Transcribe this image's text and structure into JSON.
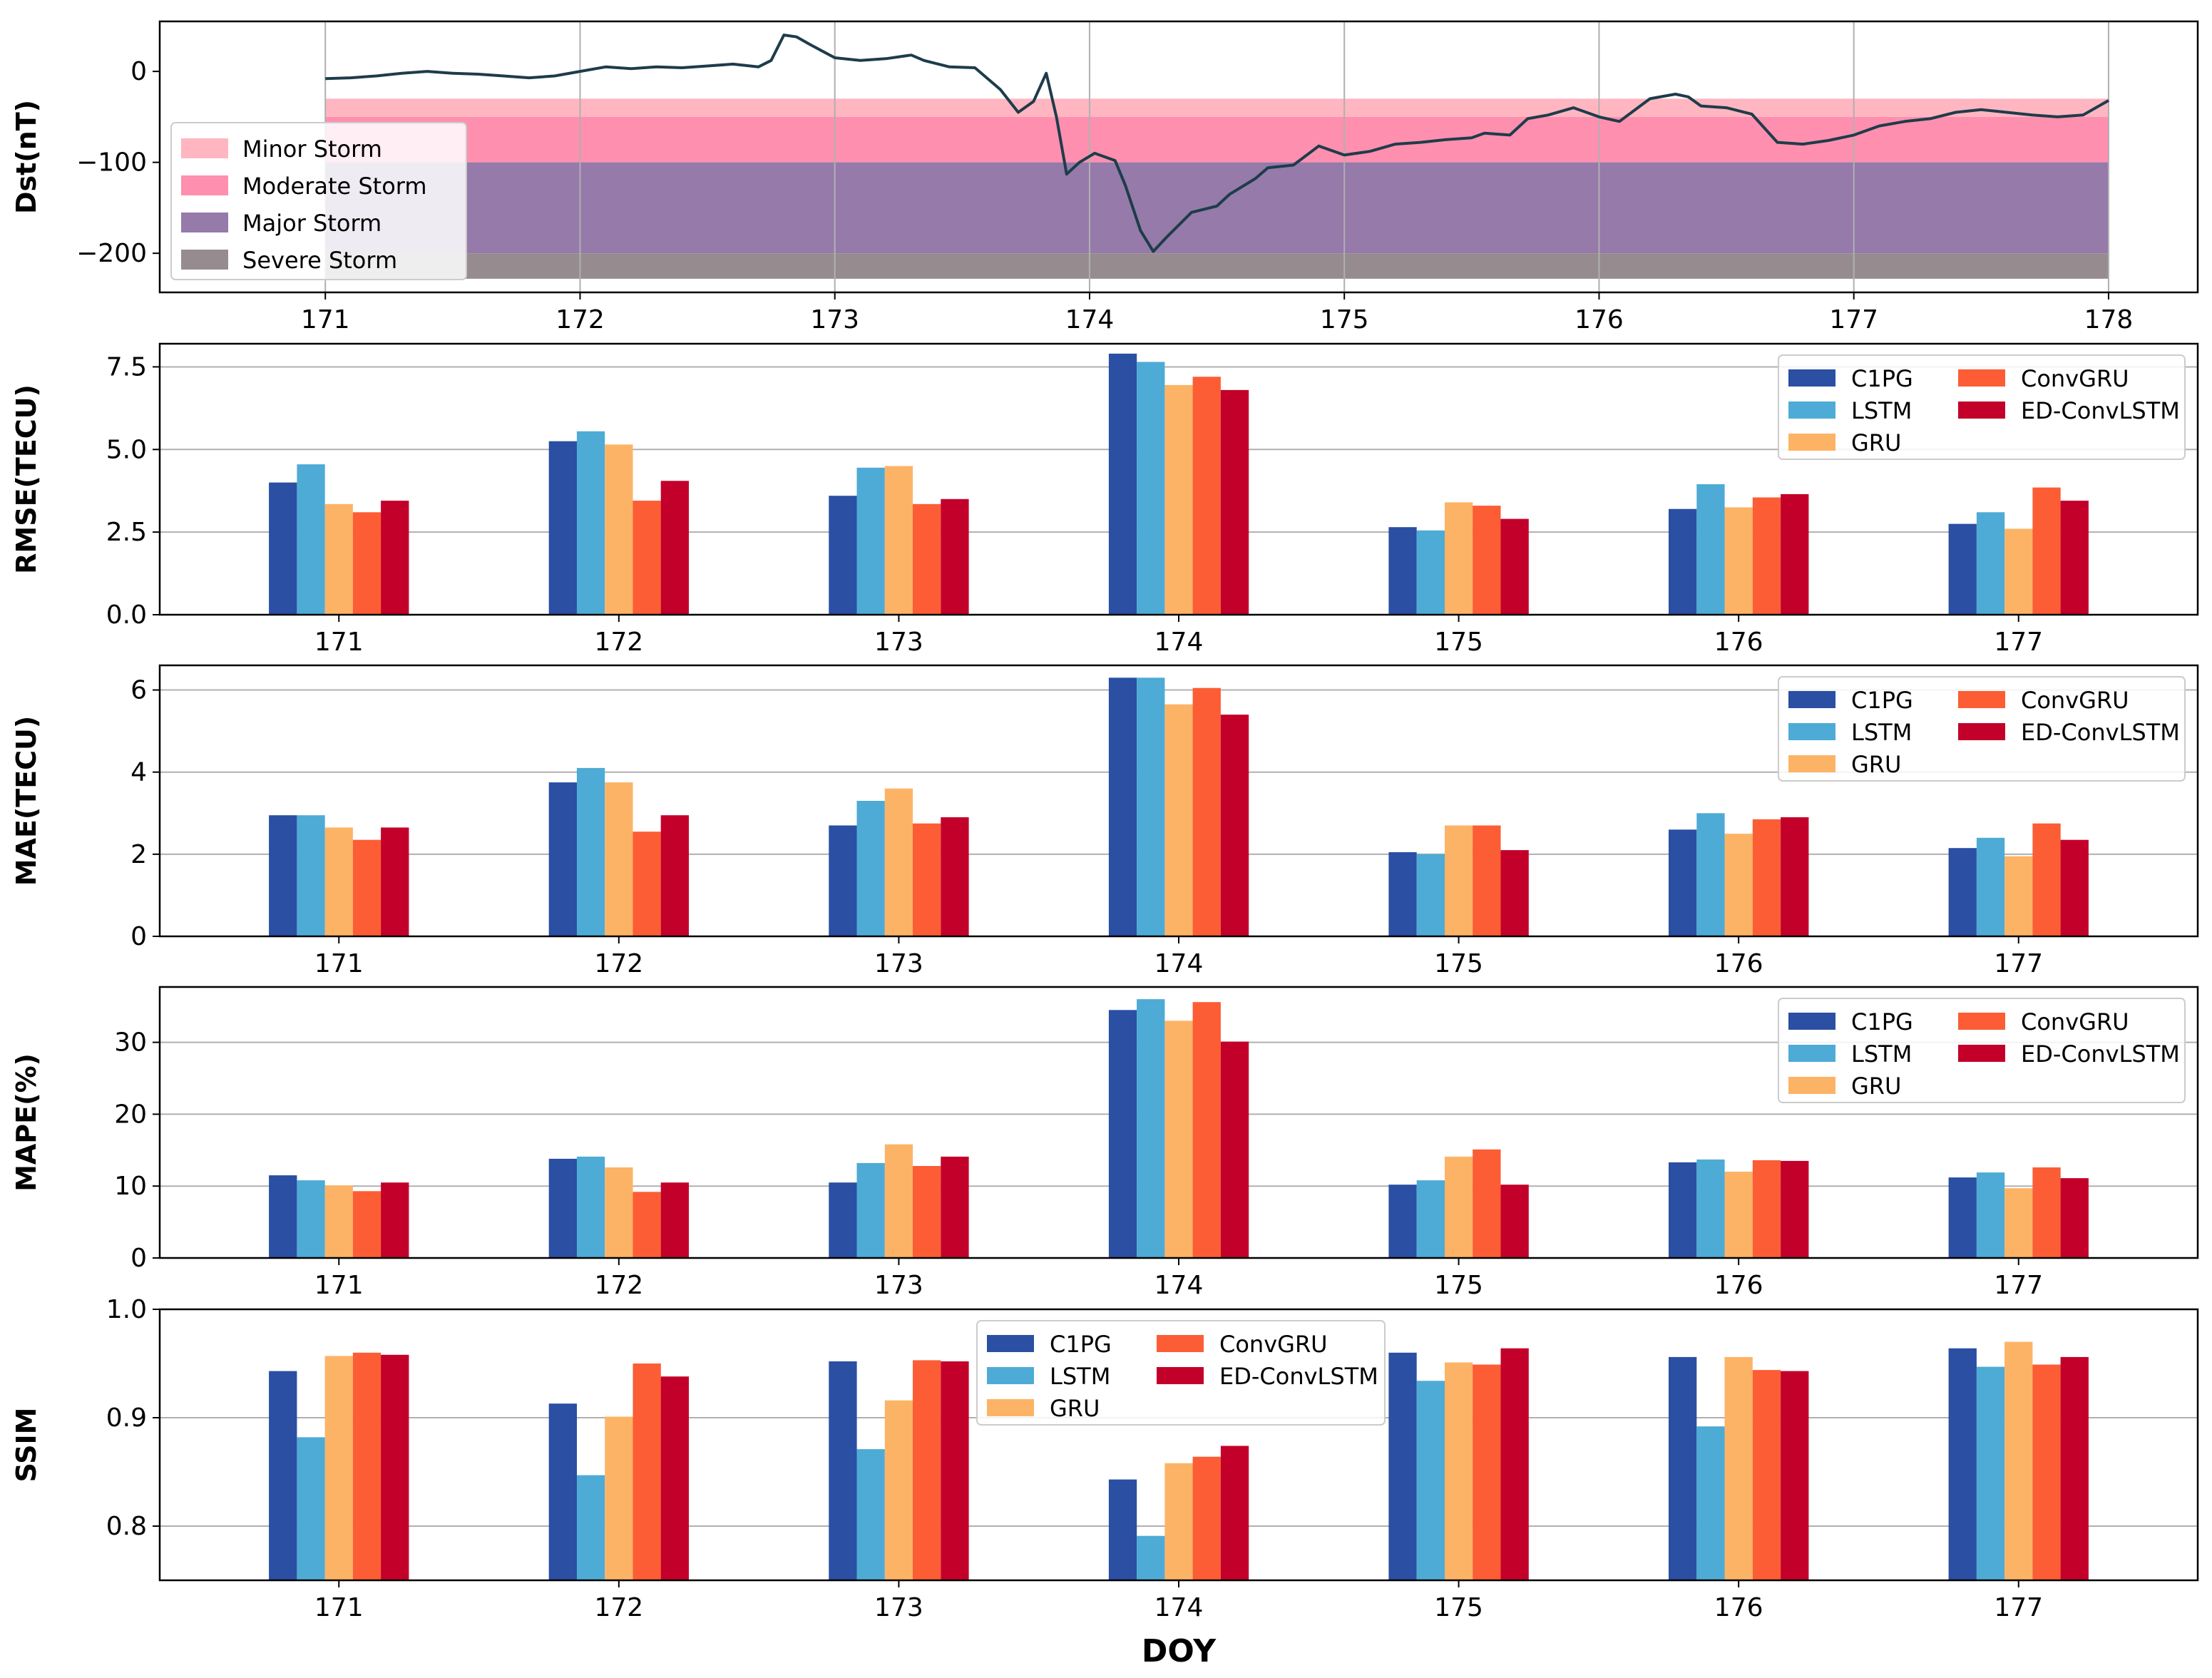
{
  "chart_data": [
    {
      "type": "line",
      "ylabel": "Dst(nT)",
      "xlim": [
        170.35,
        178.35
      ],
      "ylim": [
        -243,
        55
      ],
      "xticks": [
        171,
        172,
        173,
        174,
        175,
        176,
        177,
        178
      ],
      "yticks": [
        0,
        -100,
        -200
      ],
      "ytick_labels": [
        "0",
        "−100",
        "−200"
      ],
      "grid": "vertical",
      "bands": [
        {
          "name": "Minor Storm",
          "from": -30,
          "to": -50,
          "color": "#ffb6c1"
        },
        {
          "name": "Moderate Storm",
          "from": -50,
          "to": -100,
          "color": "#ff8faf"
        },
        {
          "name": "Major Storm",
          "from": -100,
          "to": -200,
          "color": "#957aaa"
        },
        {
          "name": "Severe Storm",
          "from": -200,
          "to": -228,
          "color": "#968c90"
        }
      ],
      "band_x_range": [
        171,
        178
      ],
      "line_color": "#1e3c4a",
      "legend_position": "lower-left",
      "series": [
        {
          "name": "Dst",
          "points": [
            [
              171.0,
              -8
            ],
            [
              171.1,
              -7
            ],
            [
              171.2,
              -5
            ],
            [
              171.3,
              -2
            ],
            [
              171.4,
              0
            ],
            [
              171.5,
              -2
            ],
            [
              171.6,
              -3
            ],
            [
              171.7,
              -5
            ],
            [
              171.8,
              -7
            ],
            [
              171.9,
              -5
            ],
            [
              172.0,
              0
            ],
            [
              172.1,
              5
            ],
            [
              172.2,
              3
            ],
            [
              172.3,
              5
            ],
            [
              172.4,
              4
            ],
            [
              172.5,
              6
            ],
            [
              172.6,
              8
            ],
            [
              172.7,
              5
            ],
            [
              172.75,
              12
            ],
            [
              172.8,
              40
            ],
            [
              172.85,
              38
            ],
            [
              172.9,
              30
            ],
            [
              173.0,
              15
            ],
            [
              173.1,
              12
            ],
            [
              173.2,
              14
            ],
            [
              173.3,
              18
            ],
            [
              173.35,
              12
            ],
            [
              173.45,
              5
            ],
            [
              173.55,
              4
            ],
            [
              173.65,
              -20
            ],
            [
              173.72,
              -45
            ],
            [
              173.78,
              -33
            ],
            [
              173.83,
              -2
            ],
            [
              173.87,
              -50
            ],
            [
              173.91,
              -113
            ],
            [
              173.96,
              -100
            ],
            [
              174.02,
              -90
            ],
            [
              174.1,
              -98
            ],
            [
              174.14,
              -125
            ],
            [
              174.2,
              -175
            ],
            [
              174.25,
              -198
            ],
            [
              174.3,
              -183
            ],
            [
              174.4,
              -155
            ],
            [
              174.5,
              -148
            ],
            [
              174.55,
              -135
            ],
            [
              174.65,
              -118
            ],
            [
              174.7,
              -106
            ],
            [
              174.8,
              -103
            ],
            [
              174.9,
              -82
            ],
            [
              175.0,
              -92
            ],
            [
              175.1,
              -88
            ],
            [
              175.2,
              -80
            ],
            [
              175.3,
              -78
            ],
            [
              175.4,
              -75
            ],
            [
              175.5,
              -73
            ],
            [
              175.55,
              -68
            ],
            [
              175.65,
              -70
            ],
            [
              175.72,
              -52
            ],
            [
              175.8,
              -48
            ],
            [
              175.9,
              -40
            ],
            [
              176.0,
              -50
            ],
            [
              176.08,
              -55
            ],
            [
              176.2,
              -30
            ],
            [
              176.3,
              -25
            ],
            [
              176.35,
              -28
            ],
            [
              176.4,
              -38
            ],
            [
              176.5,
              -40
            ],
            [
              176.6,
              -47
            ],
            [
              176.7,
              -78
            ],
            [
              176.8,
              -80
            ],
            [
              176.9,
              -76
            ],
            [
              177.0,
              -70
            ],
            [
              177.1,
              -60
            ],
            [
              177.2,
              -55
            ],
            [
              177.3,
              -52
            ],
            [
              177.4,
              -45
            ],
            [
              177.5,
              -42
            ],
            [
              177.6,
              -45
            ],
            [
              177.7,
              -48
            ],
            [
              177.8,
              -50
            ],
            [
              177.9,
              -48
            ],
            [
              178.0,
              -32
            ]
          ]
        }
      ]
    },
    {
      "type": "bar",
      "ylabel": "RMSE(TECU)",
      "categories": [
        "171",
        "172",
        "173",
        "174",
        "175",
        "176",
        "177"
      ],
      "ylim": [
        0,
        8.2
      ],
      "yticks": [
        0.0,
        2.5,
        5.0,
        7.5
      ],
      "ytick_labels": [
        "0.0",
        "2.5",
        "5.0",
        "7.5"
      ],
      "grid": "horizontal",
      "legend_position": "top-right",
      "series": [
        {
          "name": "C1PG",
          "color": "#2a4fa3",
          "values": [
            4.0,
            5.25,
            3.6,
            7.9,
            2.65,
            3.2,
            2.75
          ]
        },
        {
          "name": "LSTM",
          "color": "#4eabd5",
          "values": [
            4.55,
            5.55,
            4.45,
            7.65,
            2.55,
            3.95,
            3.1
          ]
        },
        {
          "name": "GRU",
          "color": "#fdb366",
          "values": [
            3.35,
            5.15,
            4.5,
            6.95,
            3.4,
            3.25,
            2.6
          ]
        },
        {
          "name": "ConvGRU",
          "color": "#fc5d35",
          "values": [
            3.1,
            3.45,
            3.35,
            7.2,
            3.3,
            3.55,
            3.85
          ]
        },
        {
          "name": "ED-ConvLSTM",
          "color": "#c3002a",
          "values": [
            3.45,
            4.05,
            3.5,
            6.8,
            2.9,
            3.65,
            3.45
          ]
        }
      ]
    },
    {
      "type": "bar",
      "ylabel": "MAE(TECU)",
      "categories": [
        "171",
        "172",
        "173",
        "174",
        "175",
        "176",
        "177"
      ],
      "ylim": [
        0,
        6.6
      ],
      "yticks": [
        0,
        2,
        4,
        6
      ],
      "ytick_labels": [
        "0",
        "2",
        "4",
        "6"
      ],
      "grid": "horizontal",
      "legend_position": "top-right",
      "series": [
        {
          "name": "C1PG",
          "color": "#2a4fa3",
          "values": [
            2.95,
            3.75,
            2.7,
            6.3,
            2.05,
            2.6,
            2.15
          ]
        },
        {
          "name": "LSTM",
          "color": "#4eabd5",
          "values": [
            2.95,
            4.1,
            3.3,
            6.3,
            2.0,
            3.0,
            2.4
          ]
        },
        {
          "name": "GRU",
          "color": "#fdb366",
          "values": [
            2.65,
            3.75,
            3.6,
            5.65,
            2.7,
            2.5,
            1.95
          ]
        },
        {
          "name": "ConvGRU",
          "color": "#fc5d35",
          "values": [
            2.35,
            2.55,
            2.75,
            6.05,
            2.7,
            2.85,
            2.75
          ]
        },
        {
          "name": "ED-ConvLSTM",
          "color": "#c3002a",
          "values": [
            2.65,
            2.95,
            2.9,
            5.4,
            2.1,
            2.9,
            2.35
          ]
        }
      ]
    },
    {
      "type": "bar",
      "ylabel": "MAPE(%)",
      "categories": [
        "171",
        "172",
        "173",
        "174",
        "175",
        "176",
        "177"
      ],
      "ylim": [
        0,
        37.7
      ],
      "yticks": [
        0,
        10,
        20,
        30
      ],
      "ytick_labels": [
        "0",
        "10",
        "20",
        "30"
      ],
      "grid": "horizontal",
      "legend_position": "top-right",
      "series": [
        {
          "name": "C1PG",
          "color": "#2a4fa3",
          "values": [
            11.5,
            13.8,
            10.5,
            34.5,
            10.2,
            13.3,
            11.2
          ]
        },
        {
          "name": "LSTM",
          "color": "#4eabd5",
          "values": [
            10.8,
            14.1,
            13.2,
            36.0,
            10.8,
            13.7,
            11.9
          ]
        },
        {
          "name": "GRU",
          "color": "#fdb366",
          "values": [
            10.1,
            12.6,
            15.8,
            33.0,
            14.1,
            12.0,
            9.7
          ]
        },
        {
          "name": "ConvGRU",
          "color": "#fc5d35",
          "values": [
            9.3,
            9.2,
            12.8,
            35.6,
            15.1,
            13.6,
            12.6
          ]
        },
        {
          "name": "ED-ConvLSTM",
          "color": "#c3002a",
          "values": [
            10.5,
            10.5,
            14.1,
            30.1,
            10.2,
            13.5,
            11.1
          ]
        }
      ]
    },
    {
      "type": "bar",
      "ylabel": "SSIM",
      "xlabel": "DOY",
      "categories": [
        "171",
        "172",
        "173",
        "174",
        "175",
        "176",
        "177"
      ],
      "ylim": [
        0.75,
        1.0
      ],
      "yticks": [
        0.8,
        0.9,
        1.0
      ],
      "ytick_labels": [
        "0.8",
        "0.9",
        "1.0"
      ],
      "grid": "horizontal",
      "legend_position": "top-center",
      "series": [
        {
          "name": "C1PG",
          "color": "#2a4fa3",
          "values": [
            0.943,
            0.913,
            0.952,
            0.843,
            0.96,
            0.956,
            0.964
          ]
        },
        {
          "name": "LSTM",
          "color": "#4eabd5",
          "values": [
            0.882,
            0.847,
            0.871,
            0.791,
            0.934,
            0.892,
            0.947
          ]
        },
        {
          "name": "GRU",
          "color": "#fdb366",
          "values": [
            0.957,
            0.901,
            0.916,
            0.858,
            0.951,
            0.956,
            0.97
          ]
        },
        {
          "name": "ConvGRU",
          "color": "#fc5d35",
          "values": [
            0.96,
            0.95,
            0.953,
            0.864,
            0.949,
            0.944,
            0.949
          ]
        },
        {
          "name": "ED-ConvLSTM",
          "color": "#c3002a",
          "values": [
            0.958,
            0.938,
            0.952,
            0.874,
            0.964,
            0.943,
            0.956
          ]
        }
      ]
    }
  ]
}
